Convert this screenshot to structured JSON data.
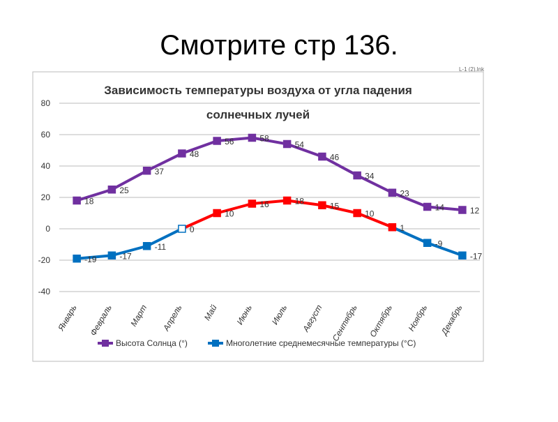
{
  "slide_title": "Смотрите стр 136.",
  "file_label": "L-1 (2).lnk",
  "chart_data": {
    "type": "line",
    "title": [
      "Зависимость температуры воздуха от угла падения",
      "солнечных лучей"
    ],
    "categories": [
      "Январь",
      "Февраль",
      "Март",
      "Апрель",
      "Май",
      "Июнь",
      "Июль",
      "Август",
      "Сентябрь",
      "Октябрь",
      "Ноябрь",
      "Декабрь"
    ],
    "series": [
      {
        "name": "Высота Солнца (°)",
        "color": "#7030a0",
        "values": [
          18,
          25,
          37,
          48,
          56,
          58,
          54,
          46,
          34,
          23,
          14,
          12
        ]
      },
      {
        "name": "Многолетние среднемесячные температуры (°C)",
        "color": "#0070c0",
        "positive_color": "#ff0000",
        "values": [
          -19,
          -17,
          -11,
          0,
          10,
          16,
          18,
          15,
          10,
          1,
          -9,
          -17
        ]
      }
    ],
    "ylim": [
      -40,
      80
    ],
    "yticks": [
      -40,
      -20,
      0,
      20,
      40,
      60,
      80
    ],
    "grid": true,
    "legend": "bottom",
    "data_labels": true
  }
}
